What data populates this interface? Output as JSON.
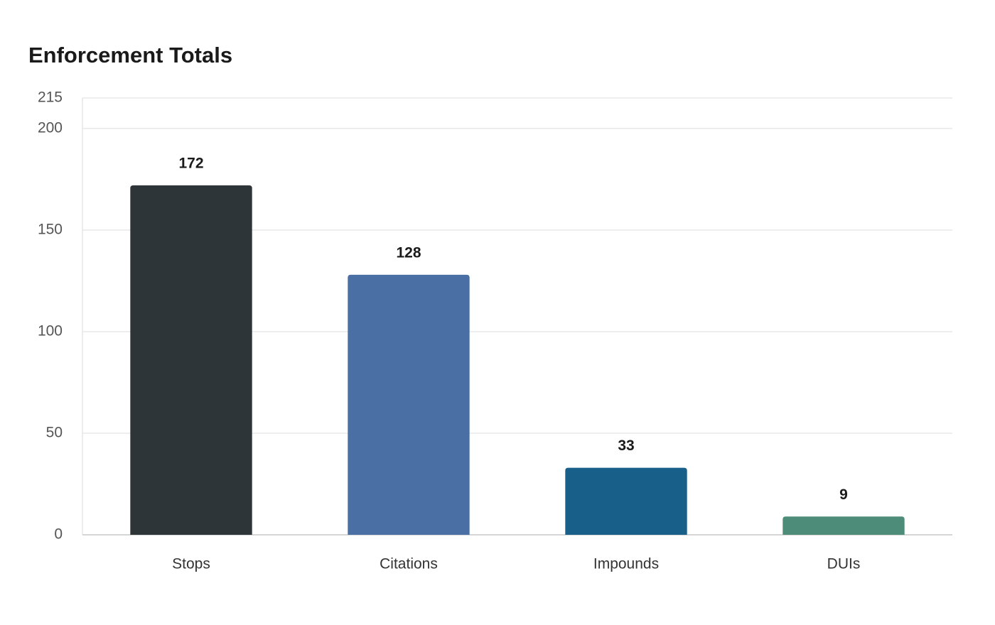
{
  "chart_data": {
    "type": "bar",
    "title": "Enforcement Totals",
    "categories": [
      "Stops",
      "Citations",
      "Impounds",
      "DUIs"
    ],
    "values": [
      172,
      128,
      33,
      9
    ],
    "colors": [
      "#2e3538",
      "#4a6fa5",
      "#18608a",
      "#4e8c7a"
    ],
    "ylim": [
      0,
      215
    ],
    "yticks": [
      0,
      50,
      100,
      150,
      200,
      215
    ],
    "grid": true
  }
}
